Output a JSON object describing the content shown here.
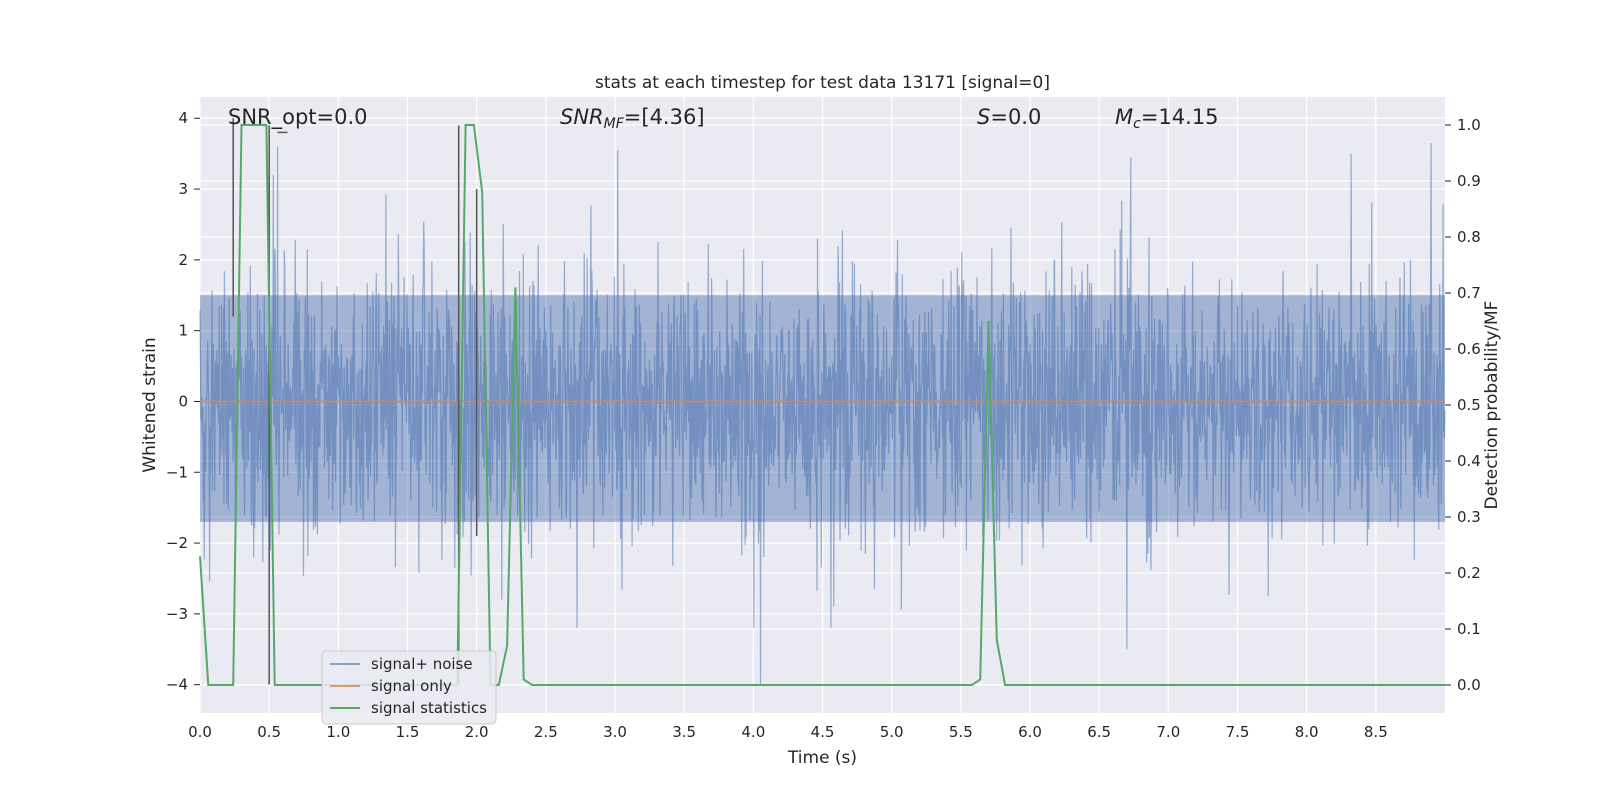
{
  "chart_data": {
    "type": "line",
    "title": "stats at each timestep for test data 13171 [signal=0]",
    "xlabel": "Time (s)",
    "ylabel_left": "Whitened strain",
    "ylabel_right": "Detection probability/MF",
    "xlim": [
      0.0,
      9.0
    ],
    "ylim_left": [
      -4.4,
      4.3
    ],
    "ylim_right": [
      -0.05,
      1.05
    ],
    "x_ticks": [
      "0.0",
      "0.5",
      "1.0",
      "1.5",
      "2.0",
      "2.5",
      "3.0",
      "3.5",
      "4.0",
      "4.5",
      "5.0",
      "5.5",
      "6.0",
      "6.5",
      "7.0",
      "7.5",
      "8.0",
      "8.5"
    ],
    "y_ticks_left": [
      "4",
      "3",
      "2",
      "1",
      "0",
      "−1",
      "−2",
      "−3",
      "−4"
    ],
    "y_ticks_right": [
      "1.0",
      "0.9",
      "0.8",
      "0.7",
      "0.6",
      "0.5",
      "0.4",
      "0.3",
      "0.2",
      "0.1",
      "0.0"
    ],
    "grid": true,
    "legend_placement": "lower-left",
    "legend": [
      "signal+ noise",
      "signal only",
      "signal statistics"
    ],
    "colors": {
      "background": "#eaeaf2",
      "grid": "#ffffff",
      "signal_noise": "#4c72b0",
      "signal_only": "#dd8452",
      "signal_statistics": "#55a868",
      "markers": "#555555"
    },
    "annotations": {
      "snr_opt": "SNR_opt=0.0",
      "snr_mf_base": "SNR",
      "snr_mf_sub": "MF",
      "snr_mf_value": "=[4.36]",
      "s_label": "S",
      "s_value": "=0.0",
      "mc_base": "M",
      "mc_sub": "c",
      "mc_value": "=14.15"
    },
    "series": [
      {
        "name": "signal+ noise",
        "axis": "left",
        "kind": "noise-band",
        "envelope_typical": [
          -1.7,
          1.5
        ],
        "notable_peaks": [
          {
            "x": 0.56,
            "y": 3.6
          },
          {
            "x": 3.02,
            "y": 3.55
          },
          {
            "x": 4.05,
            "y": -4.0
          },
          {
            "x": 6.73,
            "y": 3.45
          },
          {
            "x": 6.7,
            "y": -3.5
          },
          {
            "x": 8.32,
            "y": 3.5
          },
          {
            "x": 8.9,
            "y": 3.65
          }
        ]
      },
      {
        "name": "signal only",
        "axis": "left",
        "x": [
          0.0,
          9.0
        ],
        "y": [
          0.0,
          0.0
        ]
      },
      {
        "name": "signal statistics",
        "axis": "right",
        "x": [
          0.0,
          0.06,
          0.12,
          0.18,
          0.24,
          0.3,
          0.36,
          0.42,
          0.48,
          0.54,
          0.6,
          0.66,
          0.72,
          1.8,
          1.86,
          1.92,
          1.98,
          2.04,
          2.1,
          2.16,
          2.22,
          2.28,
          2.34,
          2.4,
          2.46,
          2.52,
          5.58,
          5.64,
          5.7,
          5.76,
          5.82,
          5.88,
          5.94,
          9.0
        ],
        "y": [
          0.23,
          0.0,
          0.0,
          0.0,
          0.0,
          1.0,
          1.0,
          1.0,
          1.0,
          0.0,
          0.0,
          0.0,
          0.0,
          0.0,
          0.0,
          1.0,
          1.0,
          0.88,
          0.0,
          0.0,
          0.07,
          0.71,
          0.01,
          0.0,
          0.0,
          0.0,
          0.0,
          0.01,
          0.65,
          0.08,
          0.0,
          0.0,
          0.0,
          0.0
        ]
      }
    ],
    "vertical_markers": [
      {
        "x": 0.24,
        "y_top": 4.0,
        "y_bottom": 1.2
      },
      {
        "x": 0.5,
        "y_top": 3.9,
        "y_bottom": -4.0
      },
      {
        "x": 0.56,
        "y_top": 3.8,
        "y_bottom": 3.8
      },
      {
        "x": 1.87,
        "y_top": 3.9,
        "y_bottom": -4.0
      },
      {
        "x": 2.0,
        "y_top": 3.0,
        "y_bottom": -1.9
      }
    ]
  }
}
